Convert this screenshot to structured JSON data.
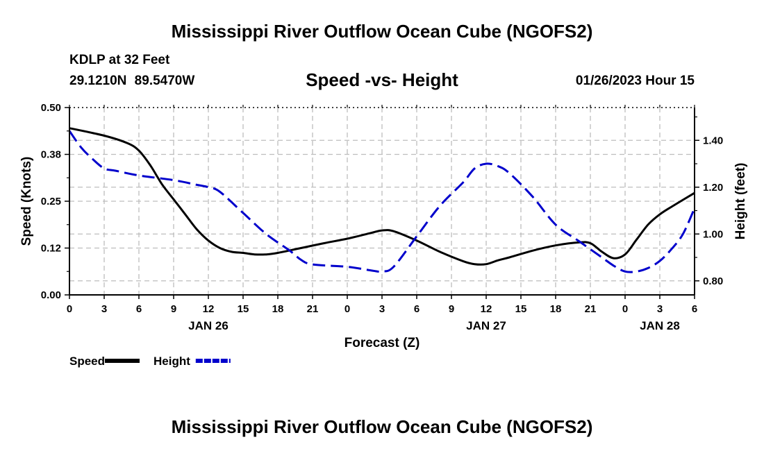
{
  "page": {
    "title": "Mississippi River Outflow Ocean Cube (NGOFS2)",
    "station_name": "KDLP at 32 Feet",
    "station_coords": "29.1210N  89.5470W",
    "subtitle": "Speed -vs- Height",
    "datetime": "01/26/2023 Hour 15",
    "bottom_title": "Mississippi River Outflow Ocean Cube (NGOFS2)"
  },
  "chart_data": {
    "type": "line",
    "title": "Speed -vs- Height",
    "xlabel": "Forecast (Z)",
    "ylabel": "Speed (Knots)",
    "y2label": "Height (feet)",
    "x_range": [
      0,
      54
    ],
    "x_tick_labels": [
      "0",
      "3",
      "6",
      "9",
      "12",
      "15",
      "18",
      "21",
      "0",
      "3",
      "6",
      "9",
      "12",
      "15",
      "18",
      "21",
      "0",
      "3",
      "6"
    ],
    "date_labels": [
      {
        "label": "JAN 26",
        "x": 12
      },
      {
        "label": "JAN 27",
        "x": 36
      },
      {
        "label": "JAN 28",
        "x": 51
      }
    ],
    "ylim": [
      0,
      0.5
    ],
    "y_ticks": [
      0,
      0.125,
      0.25,
      0.375,
      0.5
    ],
    "y_tick_labels": [
      "0.00",
      "0.12",
      "0.25",
      "0.38",
      "0.50"
    ],
    "y2lim": [
      0.74,
      1.54
    ],
    "y2_ticks": [
      0.8,
      1.0,
      1.2,
      1.4
    ],
    "y2_tick_labels": [
      "0.80",
      "1.00",
      "1.20",
      "1.40"
    ],
    "grid": true,
    "series": [
      {
        "name": "Speed",
        "axis": "left",
        "color": "#000000",
        "style": "solid",
        "x": [
          0,
          3,
          5,
          6,
          7,
          8,
          9,
          10,
          11,
          12,
          13,
          14,
          15,
          16,
          17,
          18,
          20,
          22,
          24,
          26,
          27,
          28,
          30,
          32,
          34,
          35,
          36,
          37,
          38,
          40,
          42,
          44,
          45,
          46,
          47,
          48,
          49,
          50,
          51,
          52,
          54
        ],
        "y": [
          0.445,
          0.425,
          0.405,
          0.385,
          0.345,
          0.295,
          0.255,
          0.215,
          0.175,
          0.145,
          0.125,
          0.115,
          0.112,
          0.108,
          0.108,
          0.112,
          0.125,
          0.138,
          0.15,
          0.165,
          0.172,
          0.17,
          0.145,
          0.115,
          0.09,
          0.082,
          0.082,
          0.092,
          0.1,
          0.118,
          0.132,
          0.14,
          0.138,
          0.115,
          0.098,
          0.108,
          0.148,
          0.188,
          0.215,
          0.235,
          0.272
        ]
      },
      {
        "name": "Height",
        "axis": "right",
        "color": "#0000cc",
        "style": "dashed",
        "x": [
          0,
          1,
          2,
          3,
          4,
          6,
          9,
          11,
          12,
          13,
          15,
          17,
          19,
          20,
          21,
          24,
          26,
          27,
          28,
          30,
          32,
          34,
          35,
          36,
          37,
          38,
          40,
          42,
          44,
          46,
          47,
          48,
          49,
          50,
          51,
          52,
          53,
          54
        ],
        "y": [
          1.44,
          1.37,
          1.32,
          1.28,
          1.27,
          1.25,
          1.23,
          1.21,
          1.2,
          1.18,
          1.09,
          1.0,
          0.93,
          0.89,
          0.87,
          0.86,
          0.845,
          0.84,
          0.86,
          0.99,
          1.12,
          1.22,
          1.28,
          1.3,
          1.29,
          1.26,
          1.16,
          1.04,
          0.97,
          0.9,
          0.865,
          0.84,
          0.84,
          0.855,
          0.885,
          0.935,
          1.0,
          1.11
        ]
      }
    ],
    "legend": [
      {
        "label": "Speed",
        "color": "#000000",
        "style": "solid"
      },
      {
        "label": "Height",
        "color": "#0000cc",
        "style": "dashed"
      }
    ]
  }
}
